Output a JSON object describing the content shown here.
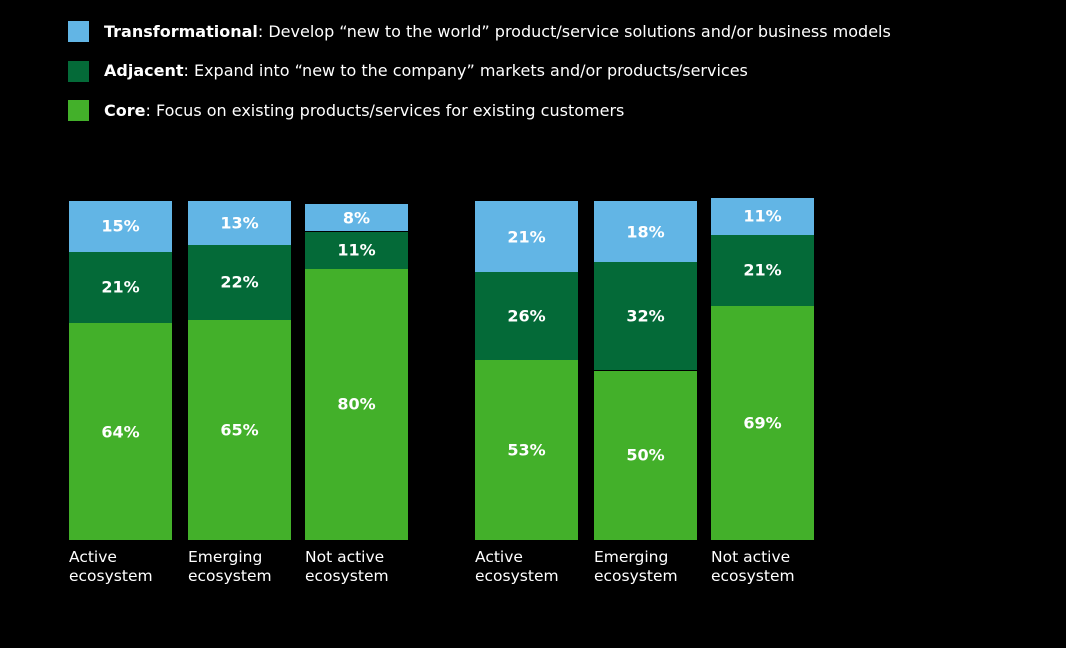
{
  "chart_data": [
    {
      "type": "stacked-bar",
      "categories": [
        "Active ecosystem",
        "Emerging ecosystem",
        "Not active ecosystem"
      ],
      "ylim": [
        0,
        100
      ],
      "series": [
        {
          "name": "Core",
          "description": ": Focus on existing products/services for existing customers",
          "color": "#43b02a",
          "values": [
            64,
            65,
            80
          ],
          "value_labels": [
            "64%",
            "65%",
            "80%"
          ]
        },
        {
          "name": "Adjacent",
          "description": ": Expand into “new to the company” markets and/or products/services",
          "color": "#046a38",
          "values": [
            21,
            22,
            11
          ],
          "value_labels": [
            "21%",
            "22%",
            "11%"
          ]
        },
        {
          "name": "Transformational",
          "description": ": Develop “new to the world” product/service solutions and/or business models",
          "color": "#62b5e5",
          "values": [
            15,
            13,
            8
          ],
          "value_labels": [
            "15%",
            "13%",
            "8%"
          ]
        }
      ]
    },
    {
      "type": "stacked-bar",
      "categories": [
        "Active ecosystem",
        "Emerging ecosystem",
        "Not active ecosystem"
      ],
      "ylim": [
        0,
        100
      ],
      "series": [
        {
          "name": "Core",
          "color": "#43b02a",
          "values": [
            53,
            50,
            69
          ],
          "value_labels": [
            "53%",
            "50%",
            "69%"
          ]
        },
        {
          "name": "Adjacent",
          "color": "#046a38",
          "values": [
            26,
            32,
            21
          ],
          "value_labels": [
            "26%",
            "32%",
            "21%"
          ]
        },
        {
          "name": "Transformational",
          "color": "#62b5e5",
          "values": [
            21,
            18,
            11
          ],
          "value_labels": [
            "21%",
            "18%",
            "11%"
          ]
        }
      ]
    }
  ]
}
